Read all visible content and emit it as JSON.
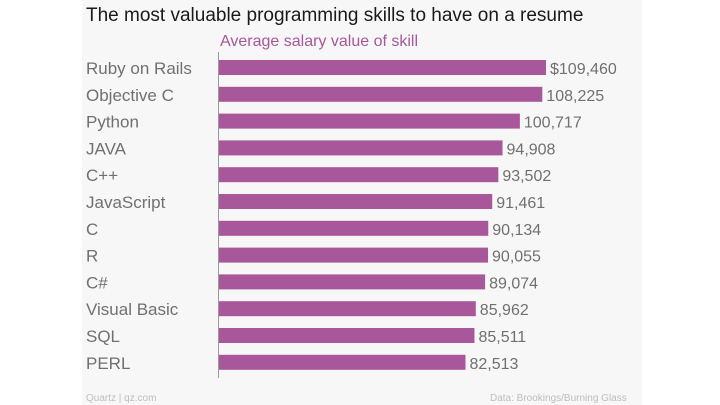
{
  "chart_data": {
    "type": "bar",
    "orientation": "horizontal",
    "title": "The most valuable programming skills to have on a resume",
    "series_label": "Average salary value of skill",
    "categories": [
      "Ruby on Rails",
      "Objective C",
      "Python",
      "JAVA",
      "C++",
      "JavaScript",
      "C",
      "R",
      "C#",
      "Visual Basic",
      "SQL",
      "PERL"
    ],
    "values": [
      109460,
      108225,
      100717,
      94908,
      93502,
      91461,
      90134,
      90055,
      89074,
      85962,
      85511,
      82513
    ],
    "value_labels": [
      "$109,460",
      "108,225",
      "100,717",
      "94,908",
      "93,502",
      "91,461",
      "90,134",
      "90,055",
      "89,074",
      "85,962",
      "85,511",
      "82,513"
    ],
    "xlim": [
      0,
      109460
    ],
    "bar_color": "#a8579a",
    "grid": false
  },
  "footer": {
    "source_left": "Quartz | qz.com",
    "source_right": "Data: Brookings/Burning Glass"
  }
}
